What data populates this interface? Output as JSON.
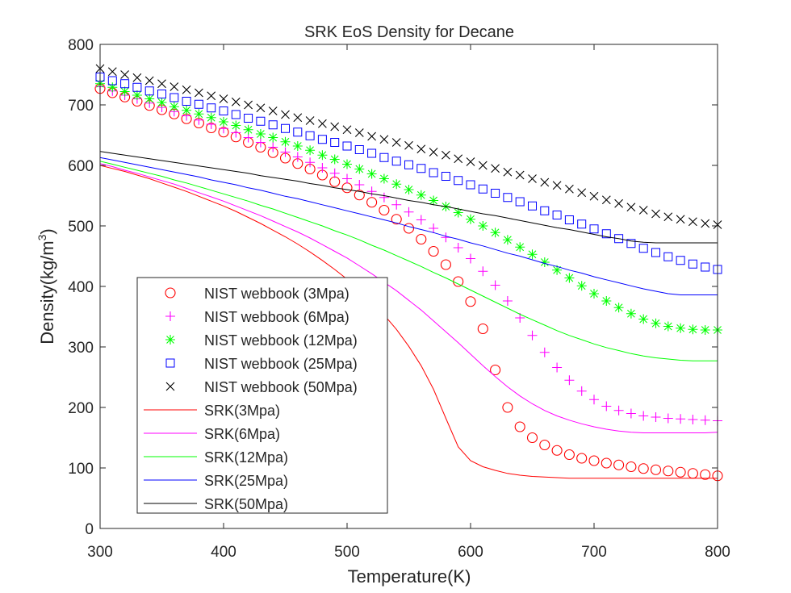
{
  "chart_data": {
    "type": "line",
    "title": "SRK EoS Density for Decane",
    "xlabel": "Temperature(K)",
    "ylabel_main": "Density(kg/m",
    "ylabel_sup": "3",
    "ylabel_close": ")",
    "xlim": [
      300,
      800
    ],
    "ylim": [
      0,
      800
    ],
    "xticks": [
      300,
      400,
      500,
      600,
      700,
      800
    ],
    "yticks": [
      0,
      100,
      200,
      300,
      400,
      500,
      600,
      700,
      800
    ],
    "grid": false,
    "legend_position": "bottom-left",
    "x": [
      300,
      310,
      320,
      330,
      340,
      350,
      360,
      370,
      380,
      390,
      400,
      410,
      420,
      430,
      440,
      450,
      460,
      470,
      480,
      490,
      500,
      510,
      520,
      530,
      540,
      550,
      560,
      570,
      580,
      590,
      600,
      610,
      620,
      630,
      640,
      650,
      660,
      670,
      680,
      690,
      700,
      710,
      720,
      730,
      740,
      750,
      760,
      770,
      780,
      790,
      800
    ],
    "series": [
      {
        "name": "NIST webbook (3Mpa)",
        "kind": "marker",
        "marker": "circle",
        "color": "#ff0000",
        "values": [
          727,
          720,
          713,
          706,
          699,
          692,
          685,
          677,
          670,
          662,
          655,
          647,
          638,
          630,
          621,
          612,
          603,
          594,
          584,
          573,
          563,
          551,
          539,
          526,
          511,
          496,
          478,
          458,
          436,
          408,
          375,
          330,
          262,
          200,
          168,
          150,
          138,
          129,
          122,
          116,
          112,
          108,
          105,
          102,
          99,
          97,
          95,
          93,
          91,
          89,
          87
        ]
      },
      {
        "name": "NIST webbook (6Mpa)",
        "kind": "marker",
        "marker": "plus",
        "color": "#ff00ff",
        "values": [
          730,
          723,
          716,
          710,
          703,
          696,
          689,
          682,
          675,
          668,
          661,
          654,
          646,
          638,
          630,
          622,
          614,
          605,
          596,
          587,
          578,
          568,
          557,
          547,
          535,
          523,
          510,
          496,
          481,
          464,
          446,
          425,
          402,
          376,
          348,
          319,
          291,
          266,
          245,
          227,
          213,
          202,
          195,
          190,
          186,
          184,
          182,
          181,
          180,
          179,
          178
        ]
      },
      {
        "name": "NIST webbook (12Mpa)",
        "kind": "marker",
        "marker": "star",
        "color": "#00ff00",
        "values": [
          735,
          729,
          722,
          716,
          710,
          704,
          697,
          691,
          685,
          679,
          672,
          666,
          659,
          652,
          646,
          639,
          632,
          625,
          617,
          610,
          602,
          594,
          586,
          578,
          569,
          560,
          551,
          542,
          532,
          522,
          511,
          500,
          489,
          477,
          465,
          453,
          440,
          427,
          414,
          401,
          388,
          376,
          365,
          355,
          346,
          339,
          334,
          331,
          329,
          328,
          328
        ]
      },
      {
        "name": "NIST webbook (25Mpa)",
        "kind": "marker",
        "marker": "square",
        "color": "#0000ff",
        "values": [
          746,
          740,
          735,
          729,
          723,
          718,
          712,
          706,
          701,
          695,
          690,
          684,
          678,
          673,
          667,
          661,
          655,
          649,
          643,
          638,
          632,
          626,
          620,
          613,
          607,
          601,
          595,
          588,
          582,
          575,
          568,
          561,
          554,
          547,
          540,
          533,
          525,
          518,
          510,
          503,
          495,
          487,
          479,
          471,
          463,
          456,
          449,
          443,
          437,
          432,
          428
        ]
      },
      {
        "name": "NIST webbook (50Mpa)",
        "kind": "marker",
        "marker": "x",
        "color": "#000000",
        "values": [
          760,
          755,
          750,
          745,
          740,
          735,
          730,
          725,
          720,
          715,
          710,
          705,
          700,
          695,
          690,
          684,
          679,
          674,
          669,
          664,
          659,
          654,
          648,
          643,
          638,
          633,
          627,
          622,
          617,
          611,
          606,
          600,
          595,
          589,
          584,
          578,
          572,
          567,
          561,
          555,
          549,
          543,
          537,
          531,
          526,
          520,
          515,
          511,
          507,
          504,
          502
        ]
      },
      {
        "name": "SRK(3Mpa)",
        "kind": "line",
        "color": "#ff0000",
        "values": [
          600,
          595,
          590,
          584,
          578,
          571,
          564,
          557,
          549,
          541,
          533,
          524,
          514,
          504,
          493,
          482,
          470,
          457,
          443,
          428,
          412,
          394,
          375,
          353,
          329,
          301,
          269,
          230,
          182,
          135,
          112,
          102,
          96,
          91,
          88,
          86,
          85,
          84,
          83,
          83,
          83,
          83,
          83,
          83,
          83,
          83,
          83,
          83,
          83,
          83,
          83
        ]
      },
      {
        "name": "SRK(6Mpa)",
        "kind": "line",
        "color": "#ff00ff",
        "values": [
          603,
          598,
          592,
          587,
          581,
          575,
          569,
          562,
          555,
          548,
          541,
          533,
          525,
          517,
          508,
          499,
          490,
          480,
          469,
          458,
          447,
          434,
          421,
          407,
          393,
          377,
          361,
          343,
          325,
          307,
          288,
          269,
          251,
          234,
          219,
          206,
          195,
          186,
          179,
          173,
          168,
          164,
          161,
          159,
          158,
          158,
          158,
          158,
          158,
          158,
          159
        ]
      },
      {
        "name": "SRK(12Mpa)",
        "kind": "line",
        "color": "#00ff00",
        "values": [
          607,
          602,
          597,
          592,
          587,
          582,
          576,
          571,
          565,
          559,
          553,
          547,
          541,
          534,
          528,
          521,
          514,
          507,
          500,
          492,
          485,
          477,
          468,
          460,
          451,
          442,
          433,
          423,
          414,
          404,
          394,
          384,
          374,
          364,
          354,
          345,
          336,
          327,
          319,
          312,
          305,
          299,
          294,
          289,
          285,
          282,
          280,
          278,
          277,
          277,
          277
        ]
      },
      {
        "name": "SRK(25Mpa)",
        "kind": "line",
        "color": "#0000ff",
        "values": [
          613,
          609,
          605,
          601,
          597,
          593,
          589,
          585,
          581,
          576,
          572,
          568,
          563,
          559,
          554,
          549,
          545,
          540,
          535,
          530,
          525,
          520,
          515,
          510,
          505,
          499,
          494,
          489,
          483,
          478,
          472,
          467,
          461,
          455,
          450,
          444,
          438,
          433,
          427,
          422,
          416,
          411,
          406,
          401,
          396,
          392,
          388,
          386,
          386,
          386,
          386
        ]
      },
      {
        "name": "SRK(50Mpa)",
        "kind": "line",
        "color": "#000000",
        "values": [
          623,
          620,
          617,
          614,
          611,
          608,
          605,
          602,
          599,
          596,
          593,
          590,
          587,
          583,
          580,
          577,
          574,
          570,
          567,
          563,
          560,
          557,
          553,
          550,
          546,
          542,
          539,
          535,
          532,
          528,
          524,
          520,
          517,
          513,
          509,
          505,
          501,
          497,
          494,
          490,
          486,
          482,
          479,
          475,
          473,
          472,
          472,
          472,
          472,
          472,
          472
        ]
      }
    ]
  }
}
